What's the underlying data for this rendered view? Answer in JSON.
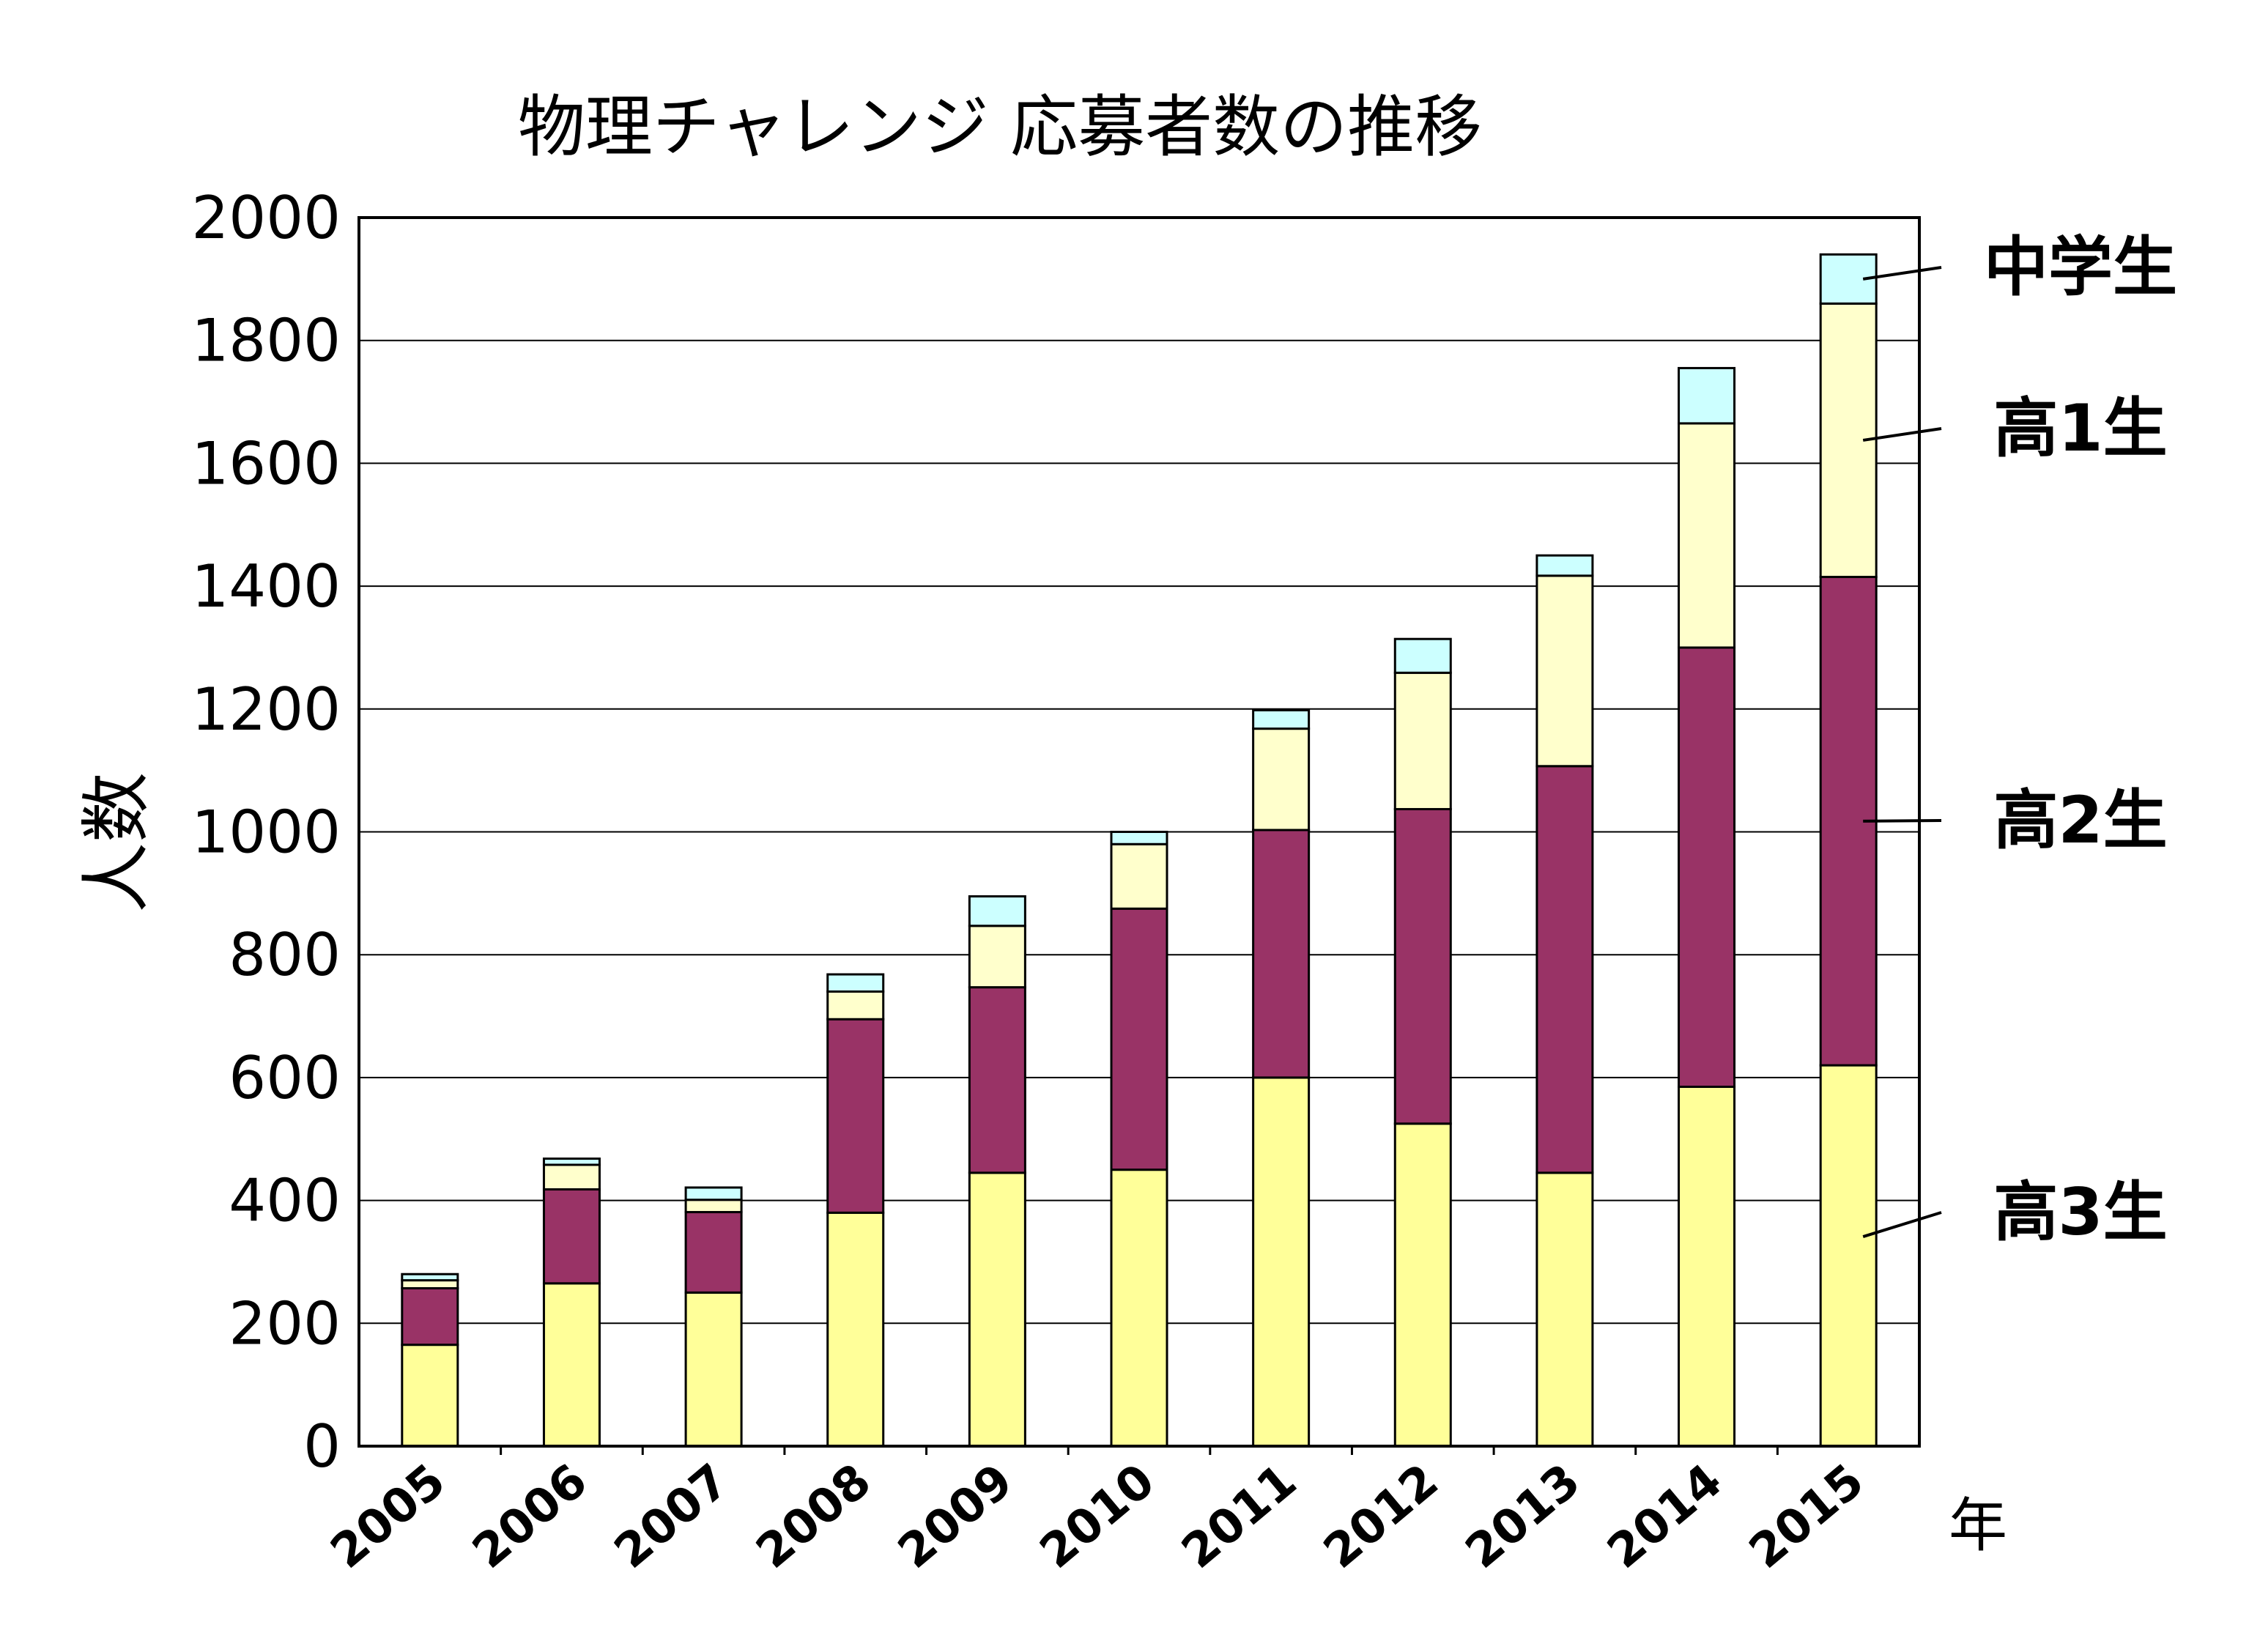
{
  "chart_data": {
    "type": "bar",
    "stacked": true,
    "title": "物理チャレンジ 応募者数の推移",
    "ylabel": "人数",
    "xlabel": "年",
    "ylim": [
      0,
      2000
    ],
    "yticks": [
      0,
      200,
      400,
      600,
      800,
      1000,
      1200,
      1400,
      1600,
      1800,
      2000
    ],
    "grid": true,
    "categories": [
      "2005",
      "2006",
      "2007",
      "2008",
      "2009",
      "2010",
      "2011",
      "2012",
      "2013",
      "2014",
      "2015"
    ],
    "series": [
      {
        "name": "高3生",
        "color": "#ffff99",
        "values": [
          165,
          265,
          250,
          380,
          445,
          450,
          600,
          525,
          445,
          585,
          620
        ]
      },
      {
        "name": "高2生",
        "color": "#993366",
        "values": [
          92,
          153,
          131,
          315,
          302,
          425,
          403,
          512,
          662,
          715,
          795
        ]
      },
      {
        "name": "高1生",
        "color": "#ffffcc",
        "values": [
          13,
          40,
          20,
          45,
          100,
          105,
          165,
          222,
          310,
          365,
          445
        ]
      },
      {
        "name": "中学生",
        "color": "#ccffff",
        "values": [
          10,
          10,
          20,
          28,
          48,
          20,
          30,
          55,
          33,
          90,
          80
        ]
      }
    ],
    "legend_placement": "right"
  }
}
